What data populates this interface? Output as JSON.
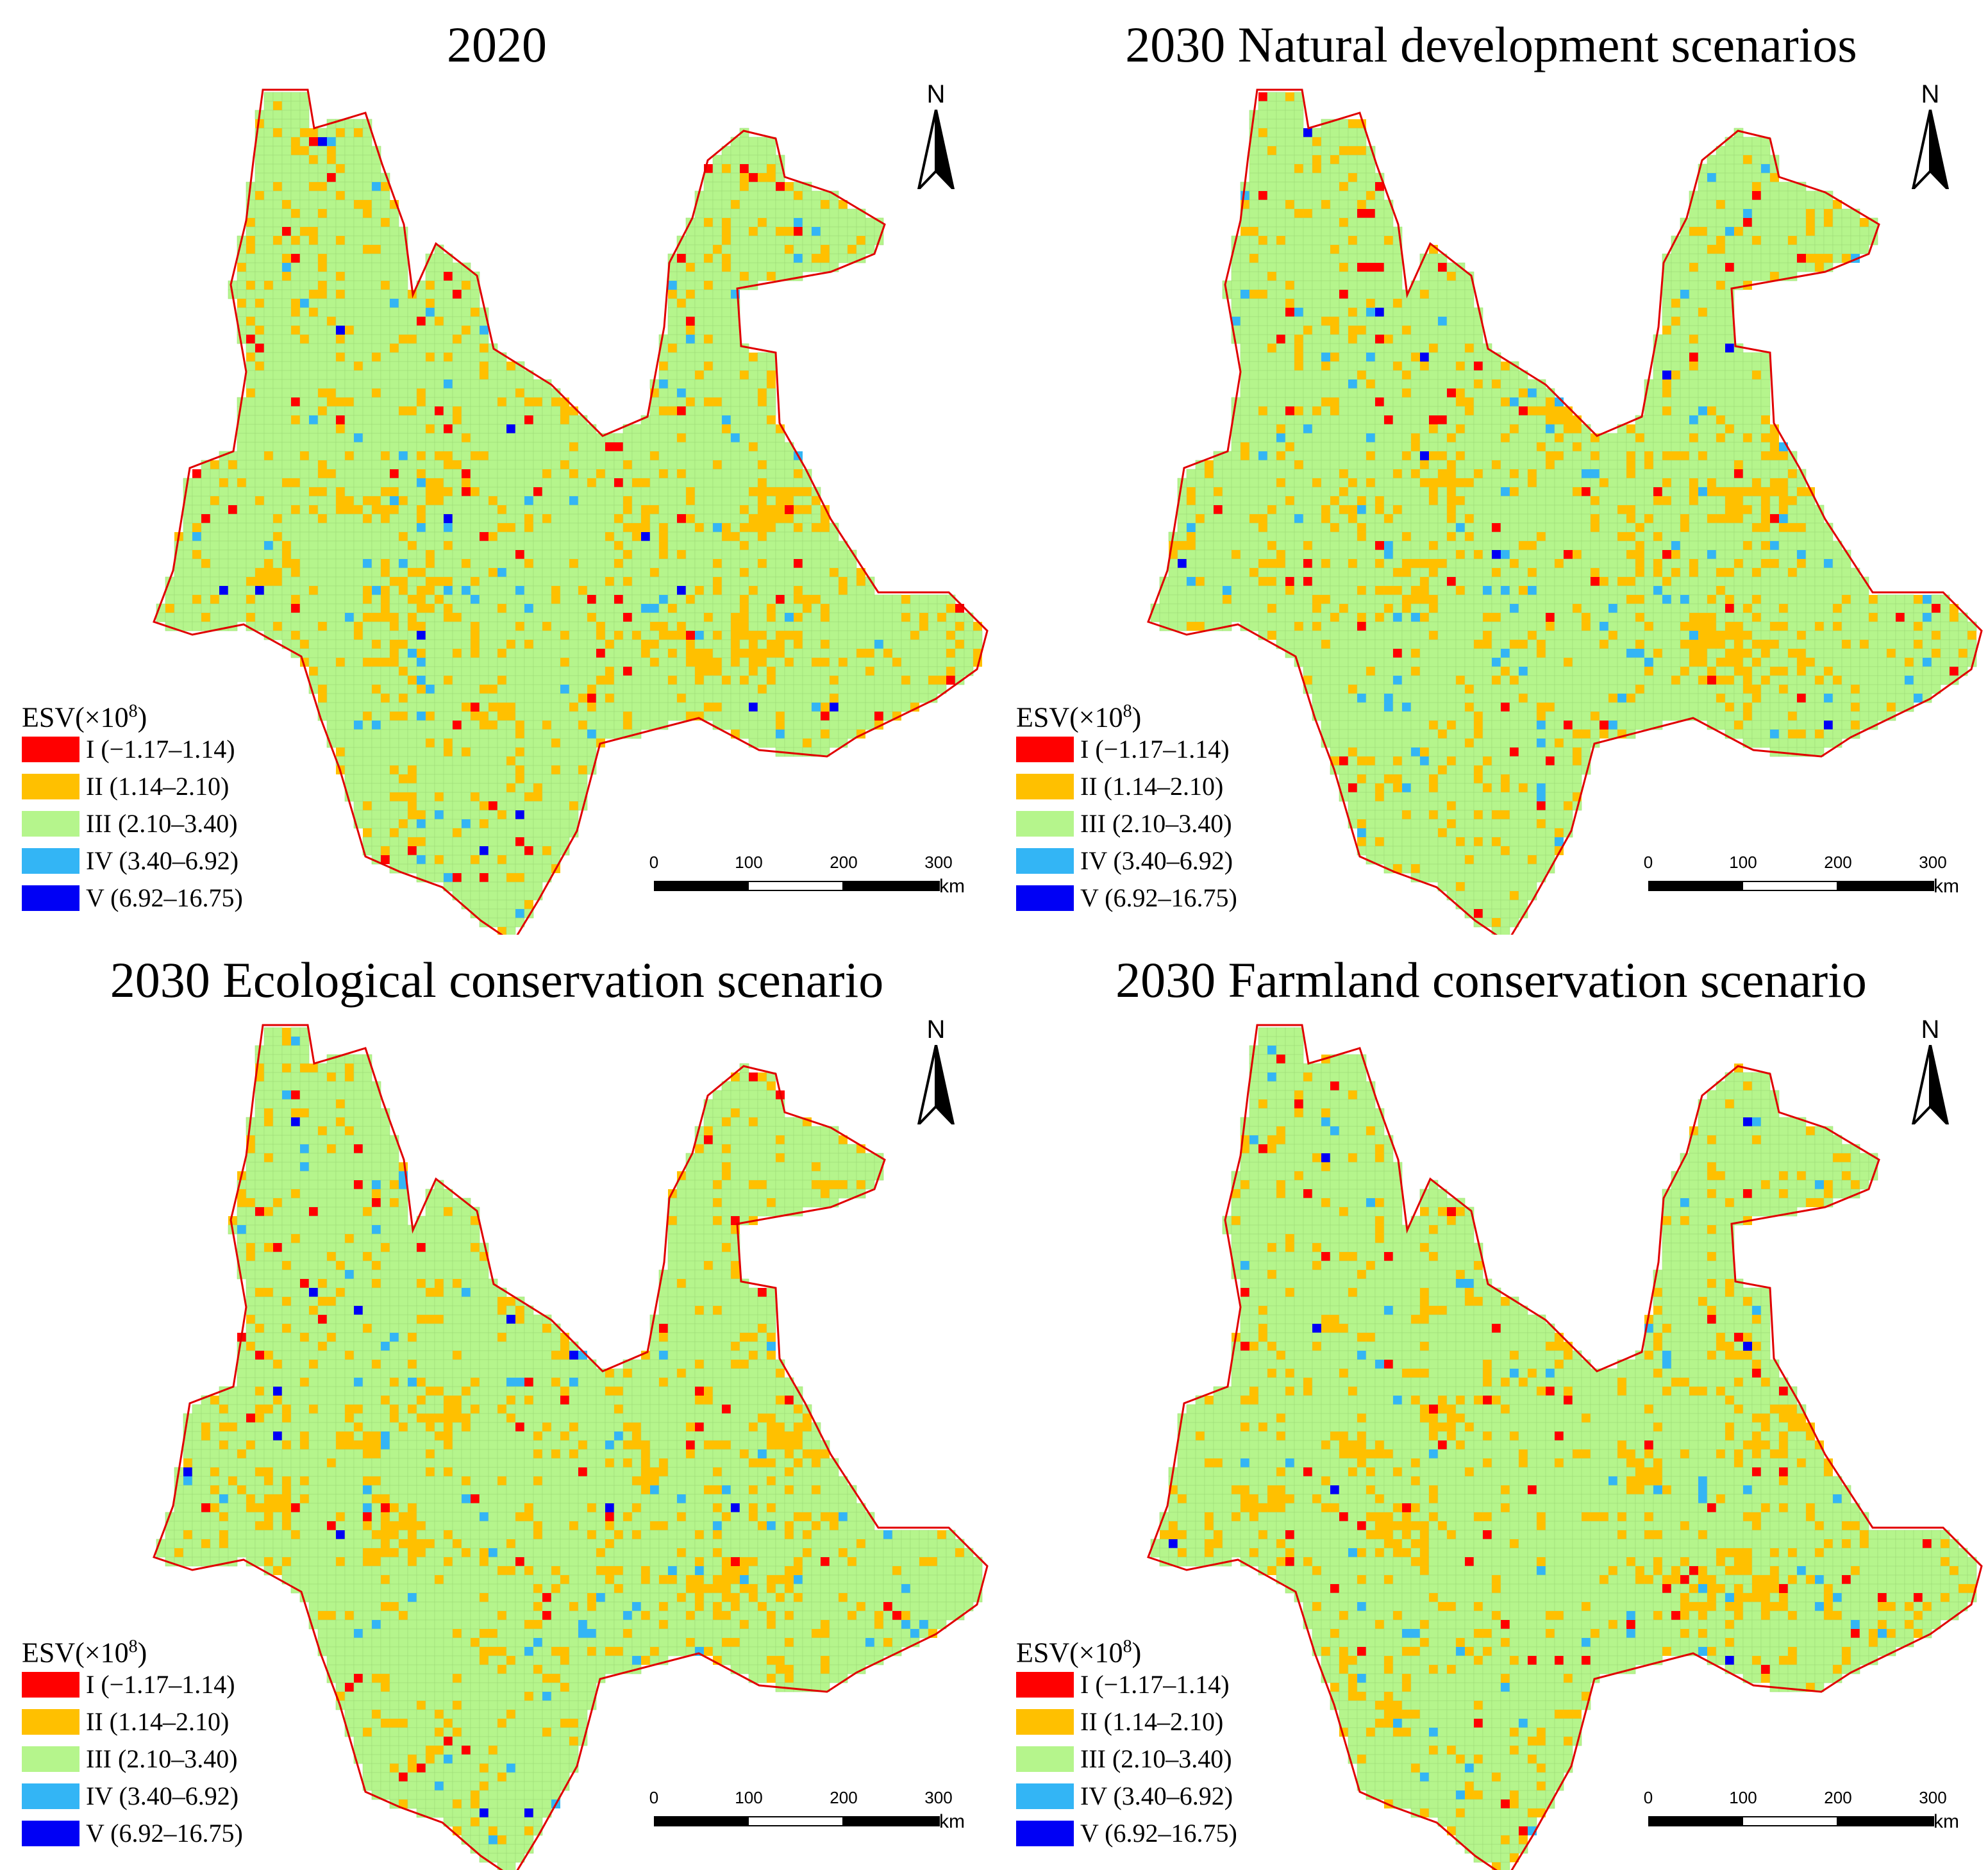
{
  "figure": {
    "colors": {
      "I": "#ff0000",
      "II": "#ffc000",
      "III": "#b5f58c",
      "IV": "#33b5f5",
      "V": "#0000f5",
      "outline": "#e00000",
      "grid": "#9fdc78"
    },
    "legend": {
      "title_prefix": "ESV(×10",
      "title_exponent": "8",
      "title_suffix": ")",
      "items": [
        {
          "class": "I",
          "label": "I (−1.17–1.14)"
        },
        {
          "class": "II",
          "label": "II (1.14–2.10)"
        },
        {
          "class": "III",
          "label": "III (2.10–3.40)"
        },
        {
          "class": "IV",
          "label": "IV (3.40–6.92)"
        },
        {
          "class": "V",
          "label": "V (6.92–16.75)"
        }
      ]
    },
    "north_arrow": {
      "letter": "N",
      "icon": "north-arrow-icon"
    },
    "scale_bar": {
      "ticks": [
        "0",
        "100",
        "200",
        "300"
      ],
      "unit": "km"
    },
    "panels": [
      {
        "id": "2020",
        "title": "2020"
      },
      {
        "id": "natural",
        "title": "2030 Natural development scenarios"
      },
      {
        "id": "ecological",
        "title": "2030 Ecological conservation scenario"
      },
      {
        "id": "farmland",
        "title": "2030 Farmland conservation scenario"
      }
    ]
  }
}
